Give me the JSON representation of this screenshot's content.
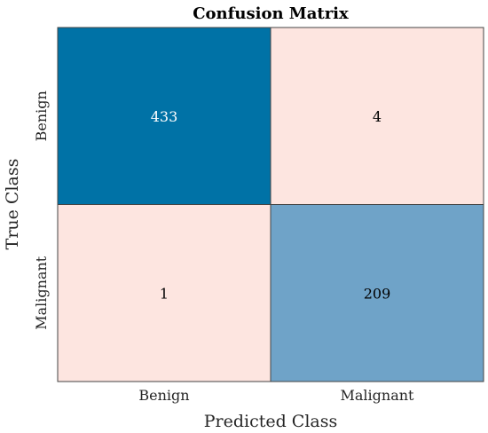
{
  "chart_data": {
    "type": "heatmap",
    "title": "Confusion Matrix",
    "xlabel": "Predicted Class",
    "ylabel": "True Class",
    "x_categories": [
      "Benign",
      "Malignant"
    ],
    "y_categories": [
      "Benign",
      "Malignant"
    ],
    "values": [
      [
        433,
        4
      ],
      [
        1,
        209
      ]
    ],
    "colors": {
      "high": "#0072a6",
      "mid": "#6fa3c8",
      "low": "#fde5e0",
      "text_on_dark": "#ffffff",
      "text_on_light": "#000000",
      "grid_line": "#444444"
    }
  }
}
